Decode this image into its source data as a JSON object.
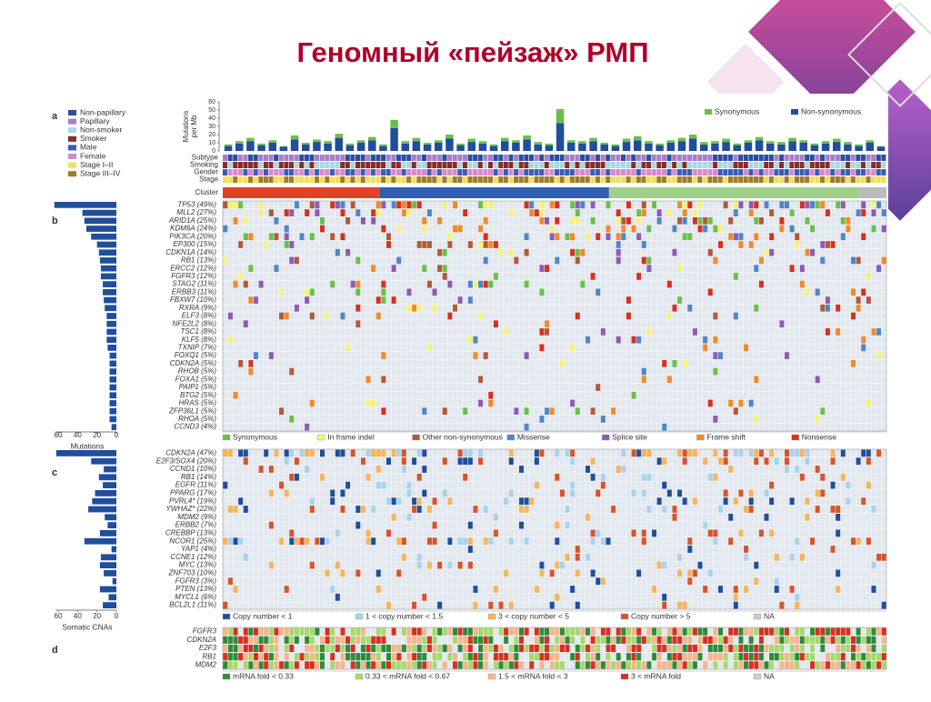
{
  "title": "Геномный «пейзаж» РМП",
  "panel_a": {
    "label": "a",
    "legend": [
      {
        "label": "Non-papillary",
        "color": "#2a4d9b"
      },
      {
        "label": "Papillary",
        "color": "#a77fc8"
      },
      {
        "label": "Non-smoker",
        "color": "#a9d7ea"
      },
      {
        "label": "Smoker",
        "color": "#8a2b2b"
      },
      {
        "label": "Male",
        "color": "#3b5bb5"
      },
      {
        "label": "Female",
        "color": "#d88ac8"
      },
      {
        "label": "Stage I–II",
        "color": "#f0e05a"
      },
      {
        "label": "Stage III–IV",
        "color": "#a07c2a"
      }
    ],
    "chart": {
      "type": "bar",
      "y_label": [
        "Mutations",
        "per Mb"
      ],
      "ylim": [
        0,
        60
      ],
      "yticks": [
        0,
        10,
        20,
        30,
        40,
        50,
        60
      ],
      "series": [
        {
          "name": "Non-synonymous",
          "color": "#1f4e9c",
          "values": [
            6,
            9,
            12,
            7,
            10,
            5,
            14,
            8,
            11,
            9,
            16,
            7,
            10,
            13,
            6,
            28,
            9,
            12,
            8,
            10,
            15,
            7,
            11,
            9,
            6,
            12,
            10,
            14,
            8,
            7,
            34,
            10,
            9,
            12,
            8,
            6,
            11,
            13,
            9,
            7,
            10,
            12,
            15,
            8,
            9,
            11,
            7,
            10,
            13,
            9,
            8,
            12,
            10,
            7,
            9,
            11,
            8,
            6,
            10,
            5
          ]
        },
        {
          "name": "Synonymous",
          "color": "#6abf4b",
          "values": [
            2,
            3,
            4,
            2,
            3,
            1,
            5,
            2,
            3,
            3,
            5,
            2,
            3,
            4,
            2,
            10,
            3,
            4,
            2,
            3,
            5,
            2,
            4,
            3,
            2,
            4,
            3,
            5,
            3,
            2,
            17,
            3,
            3,
            4,
            2,
            2,
            4,
            5,
            3,
            2,
            3,
            4,
            5,
            3,
            3,
            4,
            2,
            3,
            4,
            3,
            3,
            4,
            3,
            2,
            3,
            4,
            3,
            2,
            3,
            1
          ]
        }
      ]
    },
    "tracks": [
      "Subtype",
      "Smoking",
      "Gender",
      "Stage"
    ],
    "cluster_label": "Cluster"
  },
  "panel_b": {
    "label": "b",
    "genes": [
      "TP53 (49%)",
      "MLL2 (27%)",
      "ARID1A (25%)",
      "KDM6A (24%)",
      "PIK3CA (20%)",
      "EP300 (15%)",
      "CDKN1A (14%)",
      "RB1 (13%)",
      "ERCC2 (12%)",
      "FGFR3 (12%)",
      "STAG2 (11%)",
      "ERBB3 (11%)",
      "FBXW7 (10%)",
      "RXRA (9%)",
      "ELF3 (8%)",
      "NFE2L2 (8%)",
      "TSC1 (8%)",
      "KLF5 (8%)",
      "TXNIP (7%)",
      "FOXQ1 (5%)",
      "CDKN2A (5%)",
      "RHOB (5%)",
      "FOXA1 (5%)",
      "PAIP1 (5%)",
      "BTG2 (5%)",
      "HRAS (5%)",
      "ZFP36L1 (5%)",
      "RHOA (5%)",
      "CCND3 (4%)"
    ],
    "legend": [
      {
        "label": "Synonymous",
        "color": "#6abf4b"
      },
      {
        "label": "In frame indel",
        "color": "#f5f27a"
      },
      {
        "label": "Other non-synonymous",
        "color": "#b05a3a"
      },
      {
        "label": "Missense",
        "color": "#4f86c6"
      },
      {
        "label": "Splice site",
        "color": "#8e5ab5"
      },
      {
        "label": "Frame shift",
        "color": "#f08a2a"
      },
      {
        "label": "Nonsense",
        "color": "#d7301f"
      }
    ],
    "chart": {
      "type": "bar",
      "x_label": "Mutations",
      "xlim": [
        0,
        60
      ],
      "xticks": [
        60,
        40,
        20,
        0
      ],
      "color": "#1f4e9c",
      "values": [
        64,
        35,
        33,
        31,
        26,
        20,
        18,
        17,
        16,
        16,
        14,
        14,
        13,
        12,
        10,
        10,
        10,
        10,
        9,
        7,
        7,
        7,
        7,
        7,
        7,
        7,
        7,
        7,
        5
      ]
    }
  },
  "panel_c": {
    "label": "c",
    "genes": [
      "CDKN2A (47%)",
      "E2F3/SOX4 (20%)",
      "CCND1 (10%)",
      "RB1 (14%)",
      "EGFR (11%)",
      "PPARG (17%)",
      "PVRL4* (19%)",
      "YWHAZ* (22%)",
      "MDM2 (9%)",
      "ERBB2 (7%)",
      "CREBBP (13%)",
      "NCOR1 (25%)",
      "YAP1 (4%)",
      "CCNE1 (12%)",
      "MYC (13%)",
      "ZNF703 (10%)",
      "FGFR3 (3%)",
      "PTEN (13%)",
      "MYCL1 (6%)",
      "BCL2L1 (11%)"
    ],
    "legend": [
      {
        "label": "Copy number < 1",
        "color": "#1f4e9c"
      },
      {
        "label": "1 < copy number < 1.5",
        "color": "#a9d2ec"
      },
      {
        "label": "3 < copy number < 5",
        "color": "#f6b55a"
      },
      {
        "label": "Copy number > 5",
        "color": "#d9532a"
      },
      {
        "label": "NA",
        "color": "#c9c9c9"
      }
    ],
    "chart": {
      "type": "bar",
      "x_label": "Somatic CNAs",
      "xlim": [
        0,
        60
      ],
      "xticks": [
        60,
        40,
        20,
        0
      ],
      "color": "#1f4e9c",
      "values": [
        62,
        26,
        13,
        18,
        14,
        22,
        25,
        29,
        12,
        9,
        17,
        33,
        5,
        16,
        17,
        13,
        4,
        17,
        8,
        14
      ]
    }
  },
  "panel_d": {
    "label": "d",
    "genes": [
      "FGFR3",
      "CDKN2A",
      "E2F3",
      "RB1",
      "MDM2"
    ],
    "legend": [
      {
        "label": "mRNA fold < 0.33",
        "color": "#2e8b3a"
      },
      {
        "label": "0.33 < mRNA fold < 0.67",
        "color": "#a6d96a"
      },
      {
        "label": "1.5 < mRNA fold < 3",
        "color": "#f7b58a"
      },
      {
        "label": "3 < mRNA fold",
        "color": "#d7301f"
      },
      {
        "label": "NA",
        "color": "#cccccc"
      }
    ]
  }
}
